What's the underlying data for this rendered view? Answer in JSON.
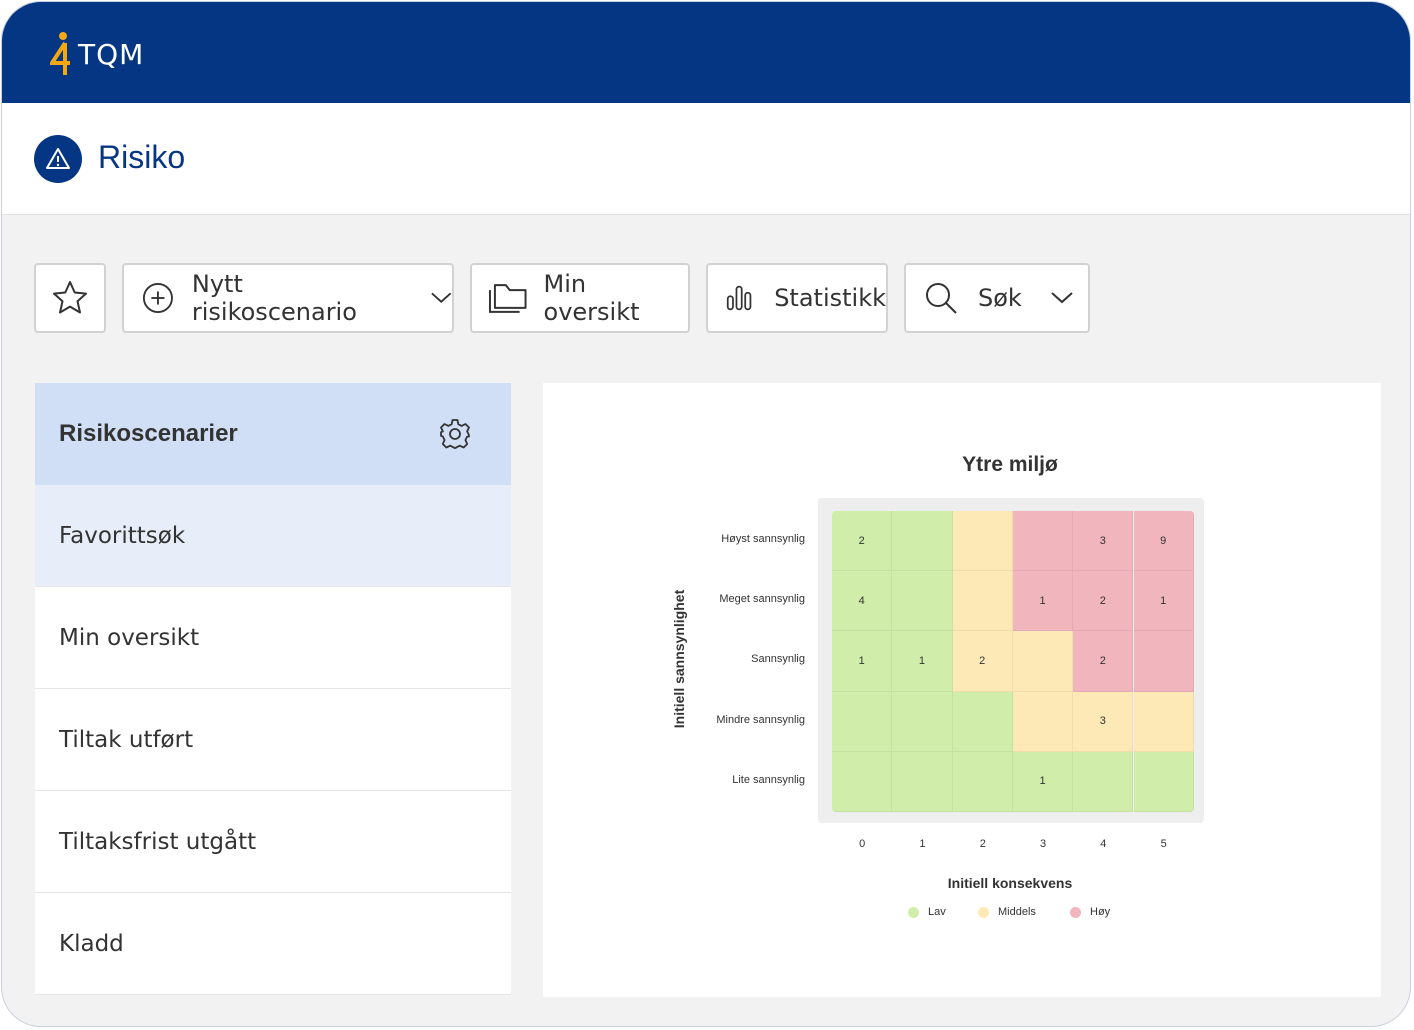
{
  "header": {
    "logo_mark": "4",
    "logo_text": "TQM",
    "brand_color": "#053684",
    "accent_color": "#f3a712"
  },
  "page": {
    "title": "Risiko",
    "icon": "warning-triangle-icon"
  },
  "toolbar": {
    "favorite_icon": "star-icon",
    "new_scenario_label": "Nytt risikoscenario",
    "my_overview_label": "Min oversikt",
    "statistics_label": "Statistikk",
    "search_label": "Søk"
  },
  "sidebar": {
    "header_label": "Risikoscenarier",
    "settings_icon": "gear-icon",
    "items": [
      {
        "label": "Favorittsøk",
        "active": true
      },
      {
        "label": "Min oversikt"
      },
      {
        "label": "Tiltak utført"
      },
      {
        "label": "Tiltaksfrist utgått"
      },
      {
        "label": "Kladd"
      }
    ]
  },
  "chart_data": {
    "type": "heatmap",
    "title": "Ytre miljø",
    "xlabel": "Initiell konsekvens",
    "ylabel": "Initiell sannsynlighet",
    "x_categories": [
      "0",
      "1",
      "2",
      "3",
      "4",
      "5"
    ],
    "y_categories": [
      "Høyst sannsynlig",
      "Meget sannsynlig",
      "Sannsynlig",
      "Mindre sannsynlig",
      "Lite sannsynlig"
    ],
    "levels": [
      [
        "Lav",
        "Lav",
        "Middels",
        "Høy",
        "Høy",
        "Høy"
      ],
      [
        "Lav",
        "Lav",
        "Middels",
        "Høy",
        "Høy",
        "Høy"
      ],
      [
        "Lav",
        "Lav",
        "Middels",
        "Middels",
        "Høy",
        "Høy"
      ],
      [
        "Lav",
        "Lav",
        "Lav",
        "Middels",
        "Middels",
        "Middels"
      ],
      [
        "Lav",
        "Lav",
        "Lav",
        "Lav",
        "Lav",
        "Lav"
      ]
    ],
    "values": [
      [
        2,
        null,
        null,
        null,
        3,
        9
      ],
      [
        4,
        null,
        null,
        1,
        2,
        1
      ],
      [
        1,
        1,
        2,
        null,
        2,
        null
      ],
      [
        null,
        null,
        null,
        null,
        3,
        null
      ],
      [
        null,
        null,
        null,
        1,
        null,
        null
      ]
    ],
    "legend": [
      {
        "name": "Lav",
        "color": "#d1edaa"
      },
      {
        "name": "Middels",
        "color": "#fde9b5"
      },
      {
        "name": "Høy",
        "color": "#f0b5bd"
      }
    ],
    "legend_position": "bottom"
  }
}
